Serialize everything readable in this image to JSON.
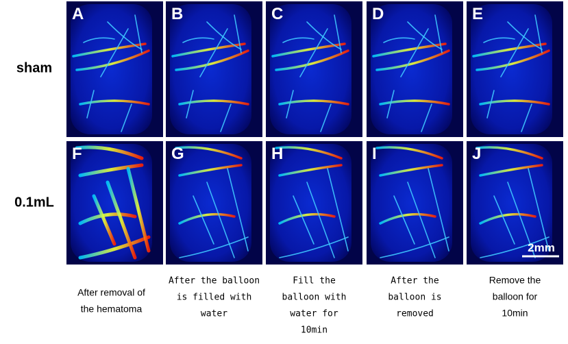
{
  "rows": [
    {
      "label": "sham",
      "panels": [
        "A",
        "B",
        "C",
        "D",
        "E"
      ]
    },
    {
      "label": "0.1mL",
      "panels": [
        "F",
        "G",
        "H",
        "I",
        "J"
      ]
    }
  ],
  "captions": [
    [
      "After removal of",
      "the hematoma"
    ],
    [
      "After the balloon",
      "is filled with",
      "water"
    ],
    [
      "Fill the",
      "balloon with",
      "water for",
      "10min"
    ],
    [
      "After the",
      "balloon is",
      "removed"
    ],
    [
      "Remove the",
      "balloon for",
      "10min"
    ]
  ],
  "scale_bar": "2mm"
}
